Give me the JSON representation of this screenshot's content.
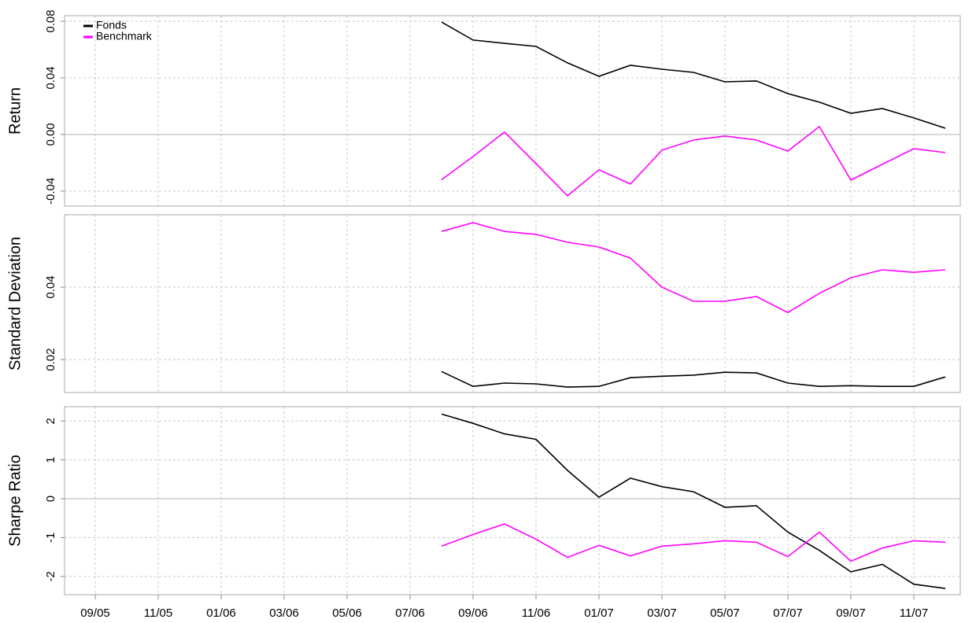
{
  "chart_data": [
    {
      "type": "line",
      "ylabel": "Return",
      "legend": "top-left",
      "grid": true,
      "ylim": [
        -0.0506,
        0.0839
      ],
      "yticks": [
        -0.04,
        {
          "value": 0,
          "label": "0.00"
        },
        0.04,
        0.08
      ],
      "series": [
        {
          "name": "Fonds",
          "color": "#000000",
          "values": [
            null,
            null,
            null,
            null,
            null,
            null,
            null,
            null,
            null,
            null,
            null,
            null,
            0.0794,
            0.0667,
            0.0644,
            0.0622,
            0.0506,
            0.0411,
            0.0489,
            0.0461,
            0.0439,
            0.0372,
            0.0378,
            0.0289,
            0.0228,
            0.015,
            0.0183,
            0.0117,
            0.0044
          ]
        },
        {
          "name": "Benchmark",
          "color": "#ff00ff",
          "values": [
            null,
            null,
            null,
            null,
            null,
            null,
            null,
            null,
            null,
            null,
            null,
            null,
            -0.032,
            -0.0156,
            0.0017,
            -0.0206,
            -0.0433,
            -0.025,
            -0.035,
            -0.0111,
            -0.0039,
            -0.0011,
            -0.0039,
            -0.0117,
            0.0056,
            -0.0322,
            -0.0211,
            -0.01,
            -0.0128
          ]
        }
      ]
    },
    {
      "type": "line",
      "ylabel": "Standard Deviation",
      "grid": true,
      "ylim": [
        0.0109,
        0.06
      ],
      "yticks": [
        0.02,
        0.04
      ],
      "series": [
        {
          "color": "#000000",
          "values": [
            null,
            null,
            null,
            null,
            null,
            null,
            null,
            null,
            null,
            null,
            null,
            null,
            0.0167,
            0.0126,
            0.0135,
            0.0133,
            0.0124,
            0.0126,
            0.015,
            0.0154,
            0.0157,
            0.0165,
            0.0163,
            0.0135,
            0.0126,
            0.0128,
            0.0126,
            0.0126,
            0.0152
          ]
        },
        {
          "color": "#ff00ff",
          "values": [
            null,
            null,
            null,
            null,
            null,
            null,
            null,
            null,
            null,
            null,
            null,
            null,
            0.0554,
            0.0578,
            0.0554,
            0.0546,
            0.0524,
            0.0511,
            0.048,
            0.04,
            0.0361,
            0.0361,
            0.0374,
            0.033,
            0.0383,
            0.0426,
            0.0448,
            0.0441,
            0.0448
          ]
        }
      ]
    },
    {
      "type": "line",
      "ylabel": "Sharpe Ratio",
      "grid": true,
      "ylim": [
        -2.47,
        2.37
      ],
      "yticks": [
        -2,
        -1,
        0,
        1,
        2
      ],
      "categories": [
        null,
        "09/05",
        null,
        "11/05",
        null,
        "01/06",
        null,
        "03/06",
        null,
        "05/06",
        null,
        "07/06",
        null,
        "09/06",
        null,
        "11/06",
        null,
        "01/07",
        null,
        "03/07",
        null,
        "05/07",
        null,
        "07/07",
        null,
        "09/07",
        null,
        "11/07",
        null
      ],
      "series": [
        {
          "color": "#000000",
          "values": [
            null,
            null,
            null,
            null,
            null,
            null,
            null,
            null,
            null,
            null,
            null,
            null,
            2.18,
            1.94,
            1.67,
            1.53,
            0.73,
            0.04,
            0.53,
            0.31,
            0.18,
            -0.22,
            -0.18,
            -0.86,
            -1.33,
            -1.88,
            -1.69,
            -2.2,
            -2.31
          ]
        },
        {
          "color": "#ff00ff",
          "values": [
            null,
            null,
            null,
            null,
            null,
            null,
            null,
            null,
            null,
            null,
            null,
            null,
            -1.22,
            -0.92,
            -0.65,
            -1.04,
            -1.51,
            -1.2,
            -1.47,
            -1.22,
            -1.16,
            -1.08,
            -1.12,
            -1.49,
            -0.86,
            -1.61,
            -1.27,
            -1.08,
            -1.12
          ]
        }
      ]
    }
  ]
}
